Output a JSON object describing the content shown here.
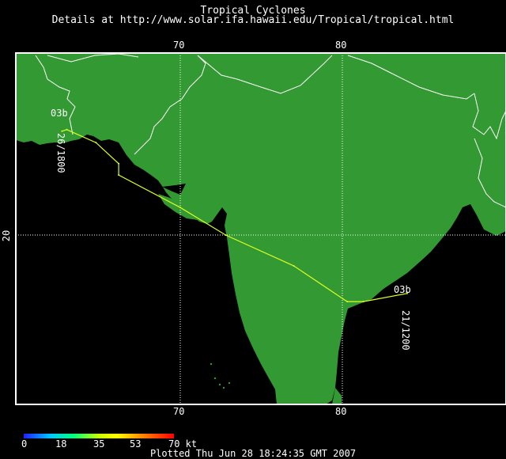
{
  "header": {
    "title": "Tropical Cyclones",
    "subtitle": "Details at http://www.solar.ifa.hawaii.edu/Tropical/tropical.html"
  },
  "axes": {
    "lon_top": [
      "70",
      "80"
    ],
    "lon_bottom": [
      "70",
      "80"
    ],
    "lat_left": "20"
  },
  "storm": {
    "name_start": "03b",
    "time_start": "21/1200",
    "name_end": "03b",
    "time_end": "26/1800",
    "track": [
      {
        "lon": 84.0,
        "lat": 16.4
      },
      {
        "lon": 81.3,
        "lat": 15.9
      },
      {
        "lon": 80.3,
        "lat": 15.9
      },
      {
        "lon": 77.0,
        "lat": 18.1
      },
      {
        "lon": 72.8,
        "lat": 20.0
      },
      {
        "lon": 70.0,
        "lat": 21.7
      },
      {
        "lon": 66.2,
        "lat": 23.7
      },
      {
        "lon": 66.2,
        "lat": 24.4
      },
      {
        "lon": 64.8,
        "lat": 25.7
      },
      {
        "lon": 63.0,
        "lat": 26.5
      },
      {
        "lon": 62.7,
        "lat": 26.4
      }
    ],
    "track_color": "#d8ff20"
  },
  "map": {
    "land_color": "#339933",
    "ocean_color": "#000000",
    "border_color": "#ffffff",
    "grid": true
  },
  "legend": {
    "labels": [
      "0",
      "18",
      "35",
      "53",
      "70 kt"
    ]
  },
  "footer": "Plotted Thu Jun 28 18:24:35 GMT 2007"
}
